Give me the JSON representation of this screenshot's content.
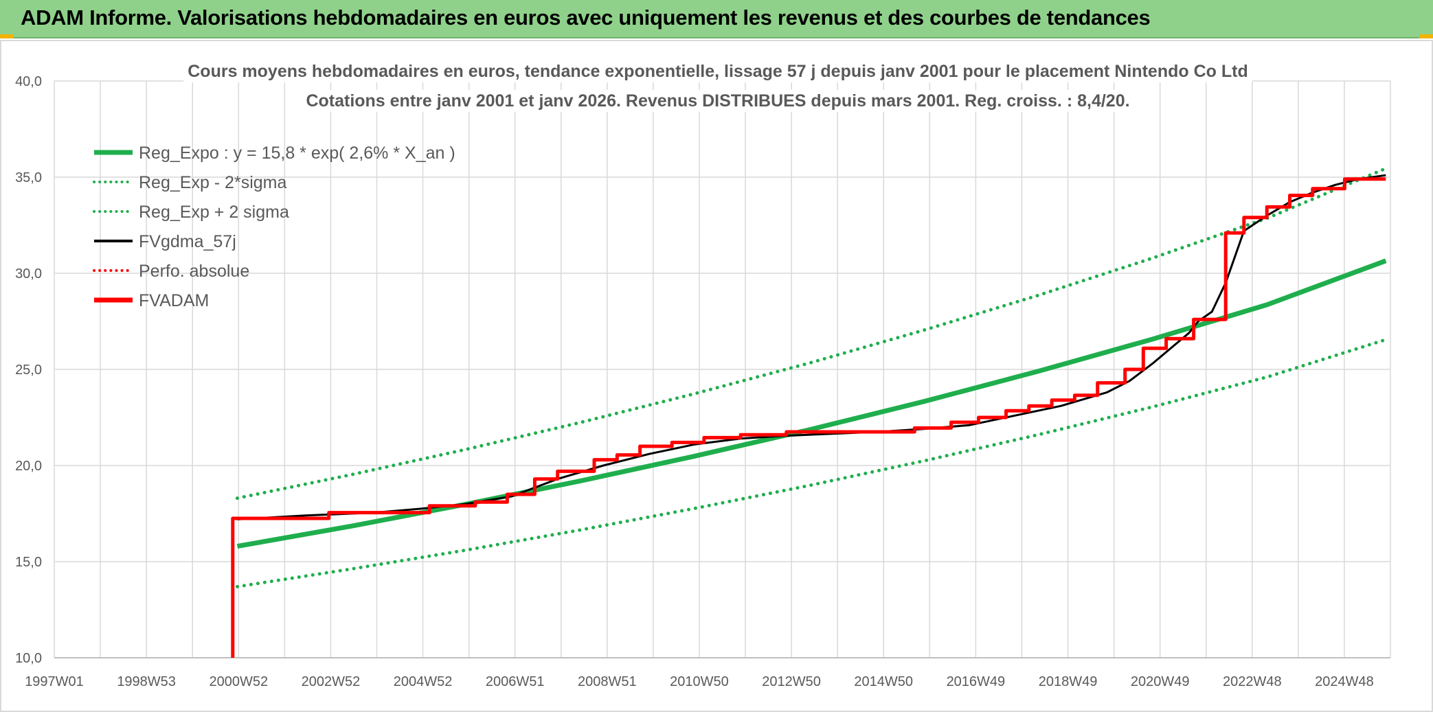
{
  "header": {
    "title": "ADAM Informe. Valorisations hebdomadaires en euros avec uniquement les revenus et des courbes de tendances"
  },
  "colors": {
    "header_bg": "#8fd18b",
    "green": "#1fae4d",
    "black": "#000000",
    "red": "#ff0000",
    "grid": "#d9d9d9",
    "text": "#595959"
  },
  "chart_data": {
    "type": "line",
    "title": "Cours moyens hebdomadaires en euros, tendance exponentielle, lissage 57 j depuis janv 2001 pour le placement Nintendo Co Ltd",
    "subtitle": "Cotations entre janv 2001 et janv 2026. Revenus DISTRIBUES depuis mars 2001. Reg. croiss. : 8,4/20.",
    "xlabel": "",
    "ylabel": "",
    "x_ticks": [
      "1997W01",
      "1998W53",
      "2000W52",
      "2002W52",
      "2004W52",
      "2006W51",
      "2008W51",
      "2010W50",
      "2012W50",
      "2014W50",
      "2016W49",
      "2018W49",
      "2020W49",
      "2022W48",
      "2024W48"
    ],
    "x_range": [
      1997.0,
      2026.2
    ],
    "y_ticks": [
      "10,0",
      "15,0",
      "20,0",
      "25,0",
      "30,0",
      "35,0",
      "40,0"
    ],
    "ylim": [
      10,
      40
    ],
    "grid": true,
    "legend_position": "top-left",
    "series": [
      {
        "name": "Reg_Expo : y = 15,8 * exp( 2,6% *  X_an )",
        "style": "solid",
        "color": "#1fae4d",
        "x": [
          2001.0,
          2003.5,
          2006.0,
          2008.5,
          2011.0,
          2013.5,
          2016.0,
          2018.5,
          2021.0,
          2023.5,
          2026.1
        ],
        "y": [
          15.8,
          16.85,
          17.99,
          19.2,
          20.49,
          21.86,
          23.33,
          24.9,
          26.57,
          28.36,
          30.65
        ]
      },
      {
        "name": "Reg_Exp - 2*sigma",
        "style": "dotted",
        "color": "#1fae4d",
        "x": [
          2001.0,
          2003.5,
          2006.0,
          2008.5,
          2011.0,
          2013.5,
          2016.0,
          2018.5,
          2021.0,
          2023.5,
          2026.1
        ],
        "y": [
          13.7,
          14.62,
          15.6,
          16.65,
          17.77,
          18.96,
          20.24,
          21.6,
          23.05,
          24.6,
          26.55
        ]
      },
      {
        "name": "Reg_Exp + 2 sigma",
        "style": "dotted",
        "color": "#1fae4d",
        "x": [
          2001.0,
          2003.5,
          2006.0,
          2008.5,
          2011.0,
          2013.5,
          2016.0,
          2018.5,
          2021.0,
          2023.5,
          2026.1
        ],
        "y": [
          18.3,
          19.53,
          20.84,
          22.24,
          23.74,
          25.33,
          27.04,
          28.85,
          30.79,
          32.86,
          35.45
        ]
      },
      {
        "name": "FVgdma_57j",
        "style": "solid",
        "color": "#000000",
        "x": [
          2001.0,
          2002.5,
          2004.0,
          2005.0,
          2006.0,
          2007.0,
          2008.0,
          2009.0,
          2010.0,
          2011.0,
          2012.0,
          2013.0,
          2014.0,
          2015.0,
          2016.0,
          2017.0,
          2018.0,
          2019.0,
          2020.0,
          2020.5,
          2021.0,
          2021.5,
          2021.8,
          2022.0,
          2022.3,
          2022.6,
          2023.0,
          2023.5,
          2024.0,
          2024.5,
          2025.0,
          2025.5,
          2026.1
        ],
        "y": [
          17.2,
          17.4,
          17.55,
          17.75,
          18.0,
          18.4,
          19.3,
          20.0,
          20.6,
          21.1,
          21.4,
          21.55,
          21.65,
          21.75,
          21.9,
          22.1,
          22.6,
          23.1,
          23.8,
          24.4,
          25.3,
          26.3,
          26.9,
          27.5,
          28.0,
          29.5,
          32.2,
          33.0,
          33.7,
          34.2,
          34.6,
          34.9,
          35.1
        ]
      },
      {
        "name": "Perfo. absolue",
        "style": "dotted",
        "color": "#ff0000",
        "x": [],
        "y": []
      },
      {
        "name": "FVADAM",
        "style": "solid-step",
        "color": "#ff0000",
        "x": [
          2000.9,
          2000.9,
          2003.0,
          2003.0,
          2005.2,
          2005.2,
          2006.2,
          2006.2,
          2006.9,
          2006.9,
          2007.5,
          2007.5,
          2008.0,
          2008.0,
          2008.8,
          2008.8,
          2009.3,
          2009.3,
          2009.8,
          2009.8,
          2010.5,
          2010.5,
          2011.2,
          2011.2,
          2012.0,
          2012.0,
          2013.0,
          2013.0,
          2015.8,
          2015.8,
          2016.6,
          2016.6,
          2017.2,
          2017.2,
          2017.8,
          2017.8,
          2018.3,
          2018.3,
          2018.8,
          2018.8,
          2019.3,
          2019.3,
          2019.8,
          2019.8,
          2020.4,
          2020.4,
          2020.8,
          2020.8,
          2021.3,
          2021.3,
          2021.9,
          2021.9,
          2022.6,
          2022.6,
          2023.0,
          2023.0,
          2023.5,
          2023.5,
          2024.0,
          2024.0,
          2024.5,
          2024.5,
          2025.2,
          2025.2,
          2026.1
        ],
        "y": [
          10.0,
          17.25,
          17.25,
          17.55,
          17.55,
          17.9,
          17.9,
          18.1,
          18.1,
          18.5,
          18.5,
          19.3,
          19.3,
          19.7,
          19.7,
          20.3,
          20.3,
          20.55,
          20.55,
          21.0,
          21.0,
          21.2,
          21.2,
          21.45,
          21.45,
          21.6,
          21.6,
          21.75,
          21.75,
          21.95,
          21.95,
          22.25,
          22.25,
          22.5,
          22.5,
          22.85,
          22.85,
          23.1,
          23.1,
          23.4,
          23.4,
          23.65,
          23.65,
          24.3,
          24.3,
          25.0,
          25.0,
          26.1,
          26.1,
          26.6,
          26.6,
          27.6,
          27.6,
          32.1,
          32.1,
          32.9,
          32.9,
          33.45,
          33.45,
          34.05,
          34.05,
          34.4,
          34.4,
          34.9,
          34.9
        ]
      }
    ]
  }
}
